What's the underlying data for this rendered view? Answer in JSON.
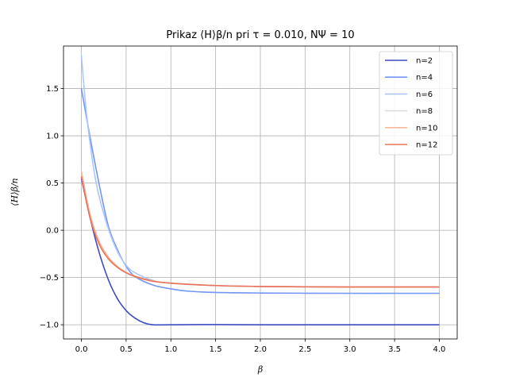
{
  "chart_data": {
    "type": "line",
    "title": "Prikaz ⟨H⟩β/n pri τ = 0.010, NΨ = 10",
    "xlabel": "β",
    "ylabel": "⟨H⟩β/n",
    "xlim": [
      -0.2,
      4.2
    ],
    "ylim": [
      -1.15,
      1.95
    ],
    "xticks": [
      0.0,
      0.5,
      1.0,
      1.5,
      2.0,
      2.5,
      3.0,
      3.5,
      4.0
    ],
    "xtick_labels": [
      "0.0",
      "0.5",
      "1.0",
      "1.5",
      "2.0",
      "2.5",
      "3.0",
      "3.5",
      "4.0"
    ],
    "yticks": [
      -1.0,
      -0.5,
      0.0,
      0.5,
      1.0,
      1.5
    ],
    "ytick_labels": [
      "−1.0",
      "−0.5",
      "0.0",
      "0.5",
      "1.0",
      "1.5"
    ],
    "grid": true,
    "legend_position": "top-right",
    "series": [
      {
        "name": "n=2",
        "color": "#3b4cc0",
        "x": [
          0,
          0.1,
          0.2,
          0.3,
          0.4,
          0.5,
          0.6,
          0.7,
          0.8,
          1.0,
          1.5,
          2.0,
          2.5,
          3.0,
          3.5,
          4.0
        ],
        "y": [
          0.55,
          0.12,
          -0.24,
          -0.52,
          -0.72,
          -0.85,
          -0.93,
          -0.98,
          -1.0,
          -1.0,
          -0.998,
          -1.0,
          -1.0,
          -1.0,
          -1.0,
          -1.0
        ]
      },
      {
        "name": "n=4",
        "color": "#7396f5",
        "x": [
          0,
          0.1,
          0.2,
          0.3,
          0.4,
          0.5,
          0.6,
          0.8,
          1.0,
          1.2,
          1.5,
          2.0,
          2.5,
          3.0,
          3.5,
          4.0
        ],
        "y": [
          1.5,
          0.97,
          0.48,
          0.05,
          -0.2,
          -0.38,
          -0.49,
          -0.58,
          -0.62,
          -0.645,
          -0.658,
          -0.664,
          -0.666,
          -0.667,
          -0.667,
          -0.667
        ]
      },
      {
        "name": "n=6",
        "color": "#aac7fd",
        "x": [
          0,
          0.05,
          0.1,
          0.15,
          0.2,
          0.3,
          0.4,
          0.5,
          0.6,
          0.8,
          1.0,
          1.5,
          2.0,
          2.5,
          3.0,
          3.5,
          4.0
        ],
        "y": [
          1.85,
          1.3,
          0.9,
          0.58,
          0.35,
          0.02,
          -0.22,
          -0.37,
          -0.45,
          -0.53,
          -0.56,
          -0.585,
          -0.595,
          -0.598,
          -0.6,
          -0.6,
          -0.6
        ]
      },
      {
        "name": "n=8",
        "color": "#dddcdc",
        "x": [
          0,
          0.1,
          0.2,
          0.3,
          0.4,
          0.5,
          0.6,
          0.8,
          1.0,
          1.5,
          2.0,
          2.5,
          3.0,
          3.5,
          4.0
        ],
        "y": [
          0.63,
          0.15,
          -0.13,
          -0.29,
          -0.39,
          -0.45,
          -0.49,
          -0.54,
          -0.56,
          -0.585,
          -0.595,
          -0.598,
          -0.6,
          -0.6,
          -0.6
        ]
      },
      {
        "name": "n=10",
        "color": "#f7b89c",
        "x": [
          0,
          0.1,
          0.2,
          0.3,
          0.4,
          0.5,
          0.6,
          0.8,
          1.0,
          1.5,
          2.0,
          2.5,
          3.0,
          3.5,
          4.0
        ],
        "y": [
          0.62,
          0.16,
          -0.12,
          -0.28,
          -0.38,
          -0.445,
          -0.485,
          -0.535,
          -0.56,
          -0.585,
          -0.595,
          -0.598,
          -0.6,
          -0.6,
          -0.6
        ]
      },
      {
        "name": "n=12",
        "color": "#e7745b",
        "x": [
          0,
          0.1,
          0.2,
          0.3,
          0.4,
          0.5,
          0.6,
          0.8,
          1.0,
          1.5,
          2.0,
          2.5,
          3.0,
          3.5,
          4.0
        ],
        "y": [
          0.57,
          0.12,
          -0.15,
          -0.3,
          -0.39,
          -0.45,
          -0.49,
          -0.54,
          -0.56,
          -0.585,
          -0.595,
          -0.598,
          -0.6,
          -0.6,
          -0.6
        ]
      }
    ]
  }
}
